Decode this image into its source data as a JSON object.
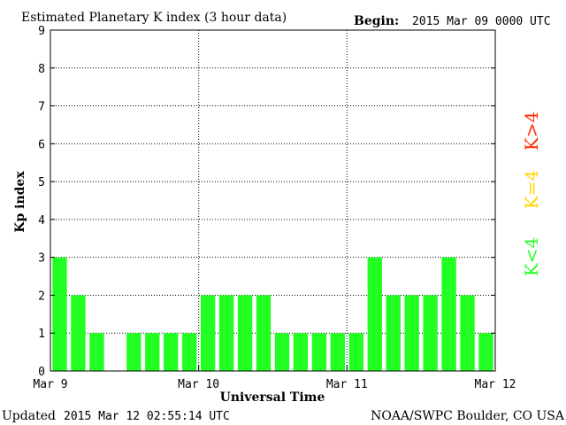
{
  "header": {
    "title": "Estimated Planetary K index (3 hour data)",
    "begin_label": "Begin:",
    "begin_value": "2015 Mar 09 0000 UTC"
  },
  "footer": {
    "updated_label": "Updated",
    "updated_value": "2015 Mar 12 02:55:14 UTC",
    "source": "NOAA/SWPC Boulder, CO USA"
  },
  "legend": {
    "items": [
      {
        "text": "K>4",
        "color": "#ff2a00"
      },
      {
        "text": "K=4",
        "color": "#ffd500"
      },
      {
        "text": "K<4",
        "color": "#22ff22"
      }
    ]
  },
  "colors": {
    "bar": "#22ff22",
    "grid": "#000000"
  },
  "chart_data": {
    "type": "bar",
    "xlabel": "Universal Time",
    "ylabel": "Kp index",
    "ylim": [
      0,
      9
    ],
    "yticks": [
      0,
      1,
      2,
      3,
      4,
      5,
      6,
      7,
      8,
      9
    ],
    "x_tick_labels": [
      "Mar 9",
      "Mar 10",
      "Mar 11",
      "Mar 12"
    ],
    "grid": true,
    "legend_position": "right",
    "interval_hours": 3,
    "values": [
      3,
      2,
      1,
      0,
      1,
      1,
      1,
      1,
      2,
      2,
      2,
      2,
      1,
      1,
      1,
      1,
      1,
      3,
      2,
      2,
      2,
      3,
      2,
      1
    ]
  }
}
